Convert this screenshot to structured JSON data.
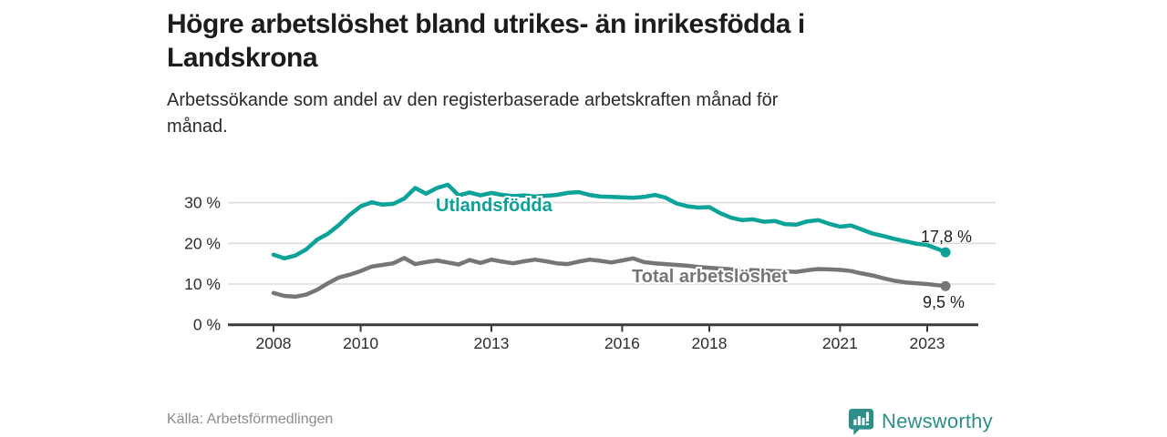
{
  "header": {
    "title_line1": "Högre arbetslöshet bland utrikes- än inrikesfödda i",
    "title_line2": "Landskrona",
    "subtitle_line1": "Arbetssökande som andel av den registerbaserade arbetskraften månad för",
    "subtitle_line2": "månad."
  },
  "footer": {
    "source": "Källa: Arbetsförmedlingen",
    "brand": "Newsworthy",
    "brand_icon": "newsworthy-speech-bubble-bar-chart-icon"
  },
  "colors": {
    "accent_teal": "#0ba29a",
    "series_gray": "#767676",
    "grid": "#dcdcdc",
    "axis": "#3b3b3b",
    "tick_text": "#2d2d2d",
    "value_text": "#1d1d1d",
    "brand_teal": "#2e8f8a"
  },
  "chart_data": {
    "type": "line",
    "title": "Högre arbetslöshet bland utrikes- än inrikesfödda i Landskrona",
    "subtitle": "Arbetssökande som andel av den registerbaserade arbetskraften månad för månad.",
    "xlabel": "",
    "ylabel": "",
    "grid": true,
    "legend_position": "inline-labels",
    "ylim": [
      0,
      36
    ],
    "xlim": [
      2007.4,
      2024.4
    ],
    "y_ticks": [
      {
        "value": 0,
        "label": "0 %"
      },
      {
        "value": 10,
        "label": "10 %"
      },
      {
        "value": 20,
        "label": "20 %"
      },
      {
        "value": 30,
        "label": "30 %"
      }
    ],
    "x_ticks": [
      {
        "year": 2008,
        "label": "2008"
      },
      {
        "year": 2010,
        "label": "2010"
      },
      {
        "year": 2013,
        "label": "2013"
      },
      {
        "year": 2016,
        "label": "2016"
      },
      {
        "year": 2018,
        "label": "2018"
      },
      {
        "year": 2021,
        "label": "2021"
      },
      {
        "year": 2023,
        "label": "2023"
      }
    ],
    "series": [
      {
        "name": "Utlandsfödda",
        "color": "#0ba29a",
        "end_label": "17,8 %",
        "end_value": 17.8,
        "points": [
          [
            2008.0,
            17.2
          ],
          [
            2008.25,
            16.3
          ],
          [
            2008.5,
            17.0
          ],
          [
            2008.75,
            18.5
          ],
          [
            2009.0,
            20.9
          ],
          [
            2009.25,
            22.4
          ],
          [
            2009.5,
            24.5
          ],
          [
            2009.75,
            27.0
          ],
          [
            2010.0,
            29.1
          ],
          [
            2010.25,
            30.1
          ],
          [
            2010.5,
            29.5
          ],
          [
            2010.75,
            29.7
          ],
          [
            2011.0,
            31.0
          ],
          [
            2011.25,
            33.6
          ],
          [
            2011.5,
            32.2
          ],
          [
            2011.75,
            33.6
          ],
          [
            2012.0,
            34.4
          ],
          [
            2012.25,
            31.8
          ],
          [
            2012.5,
            32.5
          ],
          [
            2012.75,
            31.8
          ],
          [
            2013.0,
            32.4
          ],
          [
            2013.25,
            31.9
          ],
          [
            2013.5,
            31.6
          ],
          [
            2013.75,
            31.8
          ],
          [
            2014.0,
            31.5
          ],
          [
            2014.25,
            31.7
          ],
          [
            2014.5,
            31.9
          ],
          [
            2014.75,
            32.4
          ],
          [
            2015.0,
            32.6
          ],
          [
            2015.25,
            31.9
          ],
          [
            2015.5,
            31.5
          ],
          [
            2015.75,
            31.4
          ],
          [
            2016.0,
            31.3
          ],
          [
            2016.25,
            31.2
          ],
          [
            2016.5,
            31.4
          ],
          [
            2016.75,
            31.9
          ],
          [
            2017.0,
            31.2
          ],
          [
            2017.25,
            29.8
          ],
          [
            2017.5,
            29.1
          ],
          [
            2017.75,
            28.8
          ],
          [
            2018.0,
            28.9
          ],
          [
            2018.25,
            27.4
          ],
          [
            2018.5,
            26.3
          ],
          [
            2018.75,
            25.7
          ],
          [
            2019.0,
            25.9
          ],
          [
            2019.25,
            25.3
          ],
          [
            2019.5,
            25.5
          ],
          [
            2019.75,
            24.7
          ],
          [
            2020.0,
            24.6
          ],
          [
            2020.25,
            25.4
          ],
          [
            2020.5,
            25.7
          ],
          [
            2020.75,
            24.8
          ],
          [
            2021.0,
            24.1
          ],
          [
            2021.25,
            24.4
          ],
          [
            2021.5,
            23.4
          ],
          [
            2021.75,
            22.4
          ],
          [
            2022.0,
            21.8
          ],
          [
            2022.25,
            21.1
          ],
          [
            2022.5,
            20.5
          ],
          [
            2022.75,
            19.9
          ],
          [
            2023.0,
            19.6
          ],
          [
            2023.25,
            18.6
          ],
          [
            2023.42,
            17.8
          ]
        ]
      },
      {
        "name": "Total arbetslöshet",
        "color": "#767676",
        "end_label": "9,5 %",
        "end_value": 9.5,
        "points": [
          [
            2008.0,
            7.8
          ],
          [
            2008.25,
            7.1
          ],
          [
            2008.5,
            6.9
          ],
          [
            2008.75,
            7.4
          ],
          [
            2009.0,
            8.6
          ],
          [
            2009.25,
            10.2
          ],
          [
            2009.5,
            11.6
          ],
          [
            2009.75,
            12.3
          ],
          [
            2010.0,
            13.2
          ],
          [
            2010.25,
            14.3
          ],
          [
            2010.5,
            14.7
          ],
          [
            2010.75,
            15.1
          ],
          [
            2011.0,
            16.4
          ],
          [
            2011.25,
            14.9
          ],
          [
            2011.5,
            15.4
          ],
          [
            2011.75,
            15.8
          ],
          [
            2012.0,
            15.3
          ],
          [
            2012.25,
            14.8
          ],
          [
            2012.5,
            15.9
          ],
          [
            2012.75,
            15.2
          ],
          [
            2013.0,
            16.0
          ],
          [
            2013.25,
            15.5
          ],
          [
            2013.5,
            15.1
          ],
          [
            2013.75,
            15.6
          ],
          [
            2014.0,
            16.0
          ],
          [
            2014.25,
            15.6
          ],
          [
            2014.5,
            15.1
          ],
          [
            2014.75,
            14.9
          ],
          [
            2015.0,
            15.5
          ],
          [
            2015.25,
            16.0
          ],
          [
            2015.5,
            15.7
          ],
          [
            2015.75,
            15.3
          ],
          [
            2016.0,
            15.8
          ],
          [
            2016.25,
            16.3
          ],
          [
            2016.5,
            15.4
          ],
          [
            2016.75,
            15.1
          ],
          [
            2017.0,
            14.9
          ],
          [
            2017.25,
            14.7
          ],
          [
            2017.5,
            14.5
          ],
          [
            2017.75,
            14.2
          ],
          [
            2018.0,
            14.0
          ],
          [
            2018.25,
            13.8
          ],
          [
            2018.5,
            13.6
          ],
          [
            2018.75,
            13.5
          ],
          [
            2019.0,
            13.4
          ],
          [
            2019.25,
            13.3
          ],
          [
            2019.5,
            13.2
          ],
          [
            2019.75,
            13.1
          ],
          [
            2020.0,
            13.0
          ],
          [
            2020.25,
            13.4
          ],
          [
            2020.5,
            13.7
          ],
          [
            2020.75,
            13.6
          ],
          [
            2021.0,
            13.5
          ],
          [
            2021.25,
            13.2
          ],
          [
            2021.5,
            12.6
          ],
          [
            2021.75,
            12.1
          ],
          [
            2022.0,
            11.4
          ],
          [
            2022.25,
            10.8
          ],
          [
            2022.5,
            10.4
          ],
          [
            2022.75,
            10.2
          ],
          [
            2023.0,
            10.0
          ],
          [
            2023.25,
            9.7
          ],
          [
            2023.42,
            9.5
          ]
        ]
      }
    ]
  }
}
